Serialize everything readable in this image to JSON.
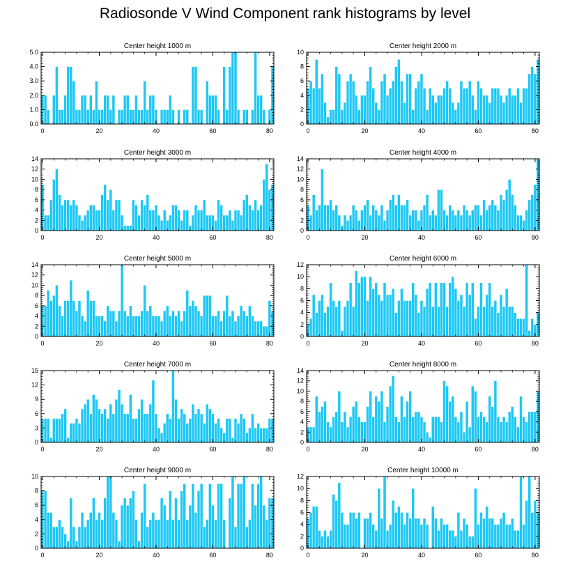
{
  "title": "Radiosonde V Wind Component rank histograms by level",
  "colors": {
    "bar": "#1ec8f4",
    "bar_edge": "#ffffff",
    "axis": "#000000"
  },
  "chart_data": [
    {
      "type": "bar",
      "title": "Center height 1000 m",
      "ylim": [
        0,
        5
      ],
      "yticks": [
        0,
        1,
        2,
        3,
        4,
        5
      ],
      "ytick_labels": [
        "0.0",
        "1.0",
        "2.0",
        "3.0",
        "4.0",
        "5.0"
      ],
      "xticks": [
        0,
        20,
        40,
        60,
        80
      ],
      "xlim": [
        -0.5,
        81.5
      ],
      "values": [
        2,
        2,
        1,
        0,
        2,
        4,
        1,
        1,
        2,
        4,
        4,
        3,
        1,
        1,
        2,
        2,
        1,
        2,
        1,
        3,
        1,
        1,
        2,
        2,
        1,
        2,
        0,
        1,
        1,
        2,
        2,
        1,
        1,
        2,
        1,
        1,
        3,
        1,
        2,
        2,
        1,
        0,
        1,
        1,
        1,
        2,
        1,
        0,
        1,
        0,
        1,
        1,
        0,
        4,
        4,
        1,
        1,
        0,
        3,
        2,
        2,
        2,
        1,
        0,
        4,
        1,
        4,
        5,
        5,
        1,
        0,
        1,
        1,
        0,
        1,
        5,
        2,
        2,
        1,
        0,
        1,
        4
      ]
    },
    {
      "type": "bar",
      "title": "Center height 2000 m",
      "ylim": [
        0,
        10
      ],
      "yticks": [
        0,
        2,
        4,
        6,
        8,
        10
      ],
      "ytick_labels": [
        "0",
        "2",
        "4",
        "6",
        "8",
        "10"
      ],
      "xticks": [
        0,
        20,
        40,
        60,
        80
      ],
      "xlim": [
        -0.5,
        81.5
      ],
      "values": [
        5,
        6,
        5,
        9,
        5,
        7,
        3,
        1,
        2,
        2,
        8,
        7,
        2,
        3,
        6,
        7,
        6,
        4,
        2,
        4,
        4,
        6,
        8,
        5,
        3,
        2,
        6,
        7,
        4,
        5,
        6,
        8,
        9,
        6,
        3,
        7,
        7,
        2,
        5,
        6,
        7,
        5,
        2,
        5,
        4,
        3,
        4,
        4,
        5,
        6,
        5,
        3,
        2,
        3,
        6,
        5,
        5,
        6,
        4,
        2,
        6,
        5,
        4,
        4,
        3,
        5,
        5,
        5,
        4,
        3,
        4,
        5,
        4,
        4,
        5,
        3,
        5,
        5,
        7,
        8,
        7,
        9
      ]
    },
    {
      "type": "bar",
      "title": "Center height 3000 m",
      "ylim": [
        0,
        14
      ],
      "yticks": [
        0,
        2,
        4,
        6,
        8,
        10,
        12,
        14
      ],
      "ytick_labels": [
        "0",
        "2",
        "4",
        "6",
        "8",
        "10",
        "12",
        "14"
      ],
      "xticks": [
        0,
        20,
        40,
        60,
        80
      ],
      "xlim": [
        -0.5,
        81.5
      ],
      "values": [
        9,
        3,
        3,
        6,
        10,
        12,
        7,
        5,
        6,
        6,
        5,
        6,
        5,
        3,
        2,
        3,
        4,
        5,
        5,
        4,
        4,
        7,
        9,
        6,
        8,
        4,
        6,
        6,
        3,
        1,
        1,
        1,
        6,
        5,
        3,
        6,
        5,
        7,
        4,
        4,
        5,
        3,
        2,
        4,
        2,
        3,
        5,
        5,
        4,
        2,
        4,
        4,
        1,
        3,
        5,
        4,
        4,
        6,
        3,
        3,
        3,
        2,
        6,
        5,
        3,
        3,
        4,
        2,
        4,
        4,
        3,
        6,
        7,
        5,
        4,
        6,
        4,
        5,
        10,
        13,
        8,
        9
      ]
    },
    {
      "type": "bar",
      "title": "Center height 4000 m",
      "ylim": [
        0,
        14
      ],
      "yticks": [
        0,
        2,
        4,
        6,
        8,
        10,
        12,
        14
      ],
      "ytick_labels": [
        "0",
        "2",
        "4",
        "6",
        "8",
        "10",
        "12",
        "14"
      ],
      "xticks": [
        0,
        20,
        40,
        60,
        80
      ],
      "xlim": [
        -0.5,
        81.5
      ],
      "values": [
        5,
        3,
        7,
        4,
        5,
        12,
        5,
        5,
        6,
        4,
        5,
        3,
        1,
        3,
        2,
        3,
        5,
        4,
        2,
        4,
        5,
        6,
        3,
        5,
        4,
        3,
        5,
        2,
        4,
        6,
        7,
        5,
        7,
        5,
        5,
        6,
        3,
        4,
        4,
        2,
        4,
        5,
        7,
        3,
        4,
        3,
        8,
        8,
        4,
        3,
        5,
        4,
        3,
        4,
        3,
        5,
        4,
        3,
        4,
        5,
        5,
        3,
        6,
        4,
        5,
        6,
        5,
        4,
        7,
        6,
        8,
        10,
        7,
        5,
        3,
        3,
        2,
        4,
        6,
        7,
        9,
        14
      ]
    },
    {
      "type": "bar",
      "title": "Center height 5000 m",
      "ylim": [
        0,
        14
      ],
      "yticks": [
        0,
        2,
        4,
        6,
        8,
        10,
        12,
        14
      ],
      "ytick_labels": [
        "0",
        "2",
        "4",
        "6",
        "8",
        "10",
        "12",
        "14"
      ],
      "xticks": [
        0,
        20,
        40,
        60,
        80
      ],
      "xlim": [
        -0.5,
        81.5
      ],
      "values": [
        6,
        6,
        9,
        7,
        8,
        10,
        6,
        4,
        7,
        7,
        11,
        7,
        5,
        7,
        4,
        3,
        9,
        7,
        7,
        4,
        4,
        4,
        3,
        6,
        5,
        5,
        3,
        5,
        14,
        5,
        4,
        6,
        4,
        4,
        4,
        5,
        10,
        5,
        6,
        4,
        4,
        4,
        3,
        5,
        6,
        4,
        5,
        4,
        5,
        3,
        5,
        9,
        6,
        7,
        6,
        5,
        4,
        8,
        8,
        8,
        4,
        4,
        5,
        3,
        5,
        8,
        4,
        5,
        3,
        4,
        6,
        5,
        4,
        6,
        4,
        3,
        3,
        3,
        2,
        2,
        7,
        5
      ]
    },
    {
      "type": "bar",
      "title": "Center height 6000 m",
      "ylim": [
        0,
        12
      ],
      "yticks": [
        0,
        2,
        4,
        6,
        8,
        10,
        12
      ],
      "ytick_labels": [
        "0",
        "2",
        "4",
        "6",
        "8",
        "10",
        "12"
      ],
      "xticks": [
        0,
        20,
        40,
        60,
        80
      ],
      "xlim": [
        -0.5,
        81.5
      ],
      "values": [
        2,
        3,
        7,
        4,
        6,
        7,
        4,
        5,
        9,
        6,
        5,
        6,
        1,
        5,
        6,
        9,
        5,
        11,
        9,
        10,
        10,
        6,
        10,
        8,
        9,
        7,
        6,
        9,
        7,
        7,
        8,
        4,
        6,
        8,
        6,
        6,
        6,
        9,
        7,
        4,
        6,
        5,
        8,
        9,
        5,
        9,
        5,
        9,
        9,
        5,
        9,
        10,
        8,
        6,
        7,
        5,
        9,
        7,
        9,
        3,
        5,
        9,
        5,
        7,
        9,
        5,
        6,
        4,
        7,
        5,
        8,
        5,
        5,
        4,
        3,
        3,
        3,
        12,
        1,
        3,
        2,
        4
      ]
    },
    {
      "type": "bar",
      "title": "Center height 7000 m",
      "ylim": [
        0,
        15
      ],
      "yticks": [
        0,
        3,
        6,
        9,
        12,
        15
      ],
      "ytick_labels": [
        "0",
        "3",
        "6",
        "9",
        "12",
        "15"
      ],
      "xticks": [
        0,
        20,
        40,
        60,
        80
      ],
      "xlim": [
        -0.5,
        81.5
      ],
      "values": [
        5,
        5,
        5,
        1,
        5,
        5,
        5,
        6,
        7,
        1,
        4,
        4,
        5,
        4,
        7,
        8,
        9,
        6,
        10,
        9,
        7,
        6,
        7,
        5,
        8,
        6,
        9,
        11,
        8,
        6,
        6,
        10,
        5,
        5,
        7,
        9,
        6,
        6,
        8,
        13,
        6,
        3,
        2,
        4,
        6,
        5,
        15,
        9,
        5,
        7,
        6,
        4,
        5,
        8,
        6,
        7,
        6,
        4,
        8,
        7,
        6,
        4,
        5,
        3,
        2,
        5,
        5,
        1,
        5,
        4,
        6,
        5,
        2,
        3,
        6,
        3,
        4,
        3,
        3,
        3,
        5,
        5
      ]
    },
    {
      "type": "bar",
      "title": "Center height 8000 m",
      "ylim": [
        0,
        14
      ],
      "yticks": [
        0,
        2,
        4,
        6,
        8,
        10,
        12,
        14
      ],
      "ytick_labels": [
        "0",
        "2",
        "4",
        "6",
        "8",
        "10",
        "12",
        "14"
      ],
      "xticks": [
        0,
        20,
        40,
        60,
        80
      ],
      "xlim": [
        -0.5,
        81.5
      ],
      "values": [
        3,
        3,
        3,
        9,
        6,
        7,
        8,
        4,
        3,
        5,
        6,
        10,
        4,
        6,
        3,
        5,
        7,
        8,
        5,
        4,
        4,
        7,
        10,
        5,
        9,
        8,
        10,
        4,
        7,
        11,
        13,
        5,
        4,
        9,
        5,
        8,
        10,
        5,
        6,
        6,
        5,
        4,
        2,
        1,
        5,
        5,
        5,
        4,
        12,
        11,
        8,
        9,
        5,
        4,
        6,
        2,
        8,
        3,
        11,
        10,
        5,
        6,
        5,
        4,
        9,
        7,
        12,
        5,
        4,
        5,
        4,
        6,
        7,
        5,
        3,
        9,
        5,
        4,
        6,
        6,
        6,
        10
      ]
    },
    {
      "type": "bar",
      "title": "Center height 9000 m",
      "ylim": [
        0,
        10
      ],
      "yticks": [
        0,
        2,
        4,
        6,
        8,
        10
      ],
      "ytick_labels": [
        "0",
        "2",
        "4",
        "6",
        "8",
        "10"
      ],
      "xticks": [
        0,
        20,
        40,
        60,
        80
      ],
      "xlim": [
        -0.5,
        81.5
      ],
      "values": [
        8,
        8,
        5,
        5,
        3,
        3,
        4,
        3,
        2,
        1,
        7,
        3,
        1,
        3,
        5,
        3,
        4,
        5,
        7,
        4,
        5,
        4,
        7,
        10,
        10,
        5,
        4,
        1,
        6,
        7,
        6,
        7,
        8,
        4,
        1,
        5,
        9,
        3,
        4,
        5,
        4,
        4,
        7,
        6,
        4,
        8,
        4,
        7,
        4,
        8,
        9,
        4,
        6,
        9,
        5,
        8,
        9,
        3,
        4,
        9,
        6,
        4,
        9,
        9,
        4,
        0,
        7,
        10,
        3,
        9,
        9,
        10,
        3,
        4,
        9,
        6,
        9,
        10,
        6,
        4,
        7,
        7
      ]
    },
    {
      "type": "bar",
      "title": "Center height 10000 m",
      "ylim": [
        0,
        12
      ],
      "yticks": [
        0,
        2,
        4,
        6,
        8,
        10,
        12
      ],
      "ytick_labels": [
        "0",
        "2",
        "4",
        "6",
        "8",
        "10",
        "12"
      ],
      "xticks": [
        0,
        20,
        40,
        60,
        80
      ],
      "xlim": [
        -0.5,
        81.5
      ],
      "values": [
        5,
        6,
        7,
        7,
        3,
        2,
        3,
        2,
        3,
        9,
        8,
        11,
        6,
        4,
        4,
        6,
        6,
        5,
        6,
        0,
        5,
        5,
        6,
        4,
        3,
        10,
        5,
        12,
        3,
        4,
        8,
        6,
        7,
        6,
        4,
        6,
        5,
        10,
        5,
        5,
        4,
        5,
        4,
        0,
        7,
        5,
        3,
        5,
        4,
        4,
        3,
        3,
        2,
        6,
        3,
        5,
        4,
        2,
        2,
        10,
        4,
        6,
        5,
        7,
        5,
        5,
        4,
        4,
        5,
        6,
        4,
        4,
        5,
        3,
        3,
        12,
        4,
        8,
        12,
        6,
        8,
        6
      ]
    }
  ]
}
